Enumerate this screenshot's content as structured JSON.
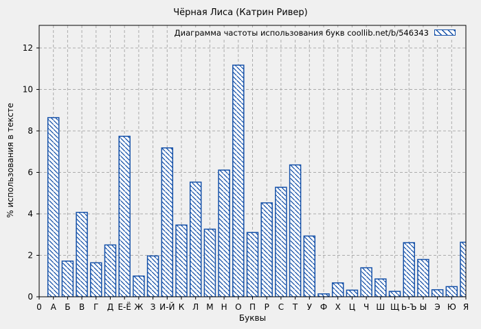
{
  "chart_data": {
    "type": "bar",
    "title": "Чёрная Лиса (Катрин Ривер)",
    "legend": {
      "label": "Диаграмма частоты использования букв  coollib.net/b/546343",
      "position": "top-right",
      "swatch": "blue-diagonal-hatch"
    },
    "xlabel": "Буквы",
    "ylabel": "% использования в тексте",
    "x_origin_label": "0",
    "categories": [
      "А",
      "Б",
      "В",
      "Г",
      "Д",
      "Е-Ё",
      "Ж",
      "З",
      "И-Й",
      "К",
      "Л",
      "М",
      "Н",
      "О",
      "П",
      "Р",
      "С",
      "Т",
      "У",
      "Ф",
      "Х",
      "Ц",
      "Ч",
      "Ш",
      "Щ",
      "Ь-Ъ",
      "Ы",
      "Э",
      "Ю",
      "Я"
    ],
    "values": [
      8.64,
      1.72,
      4.07,
      1.64,
      2.5,
      7.74,
      1.0,
      1.97,
      7.18,
      3.46,
      5.53,
      3.26,
      6.11,
      11.17,
      3.1,
      4.53,
      5.28,
      6.36,
      2.93,
      0.14,
      0.67,
      0.32,
      1.4,
      0.86,
      0.26,
      2.61,
      1.8,
      0.34,
      0.49,
      2.63
    ],
    "y_ticks": [
      0,
      2,
      4,
      6,
      8,
      10,
      12
    ],
    "ylim": [
      0,
      13.09
    ],
    "grid": true,
    "colors": {
      "bar_border": "#1450a8",
      "bar_fill": "#ffffff",
      "hatch": "#1450a8",
      "grid": "#ababab",
      "axis": "#000000",
      "text": "#000000",
      "background": "#f0f0f0"
    }
  }
}
